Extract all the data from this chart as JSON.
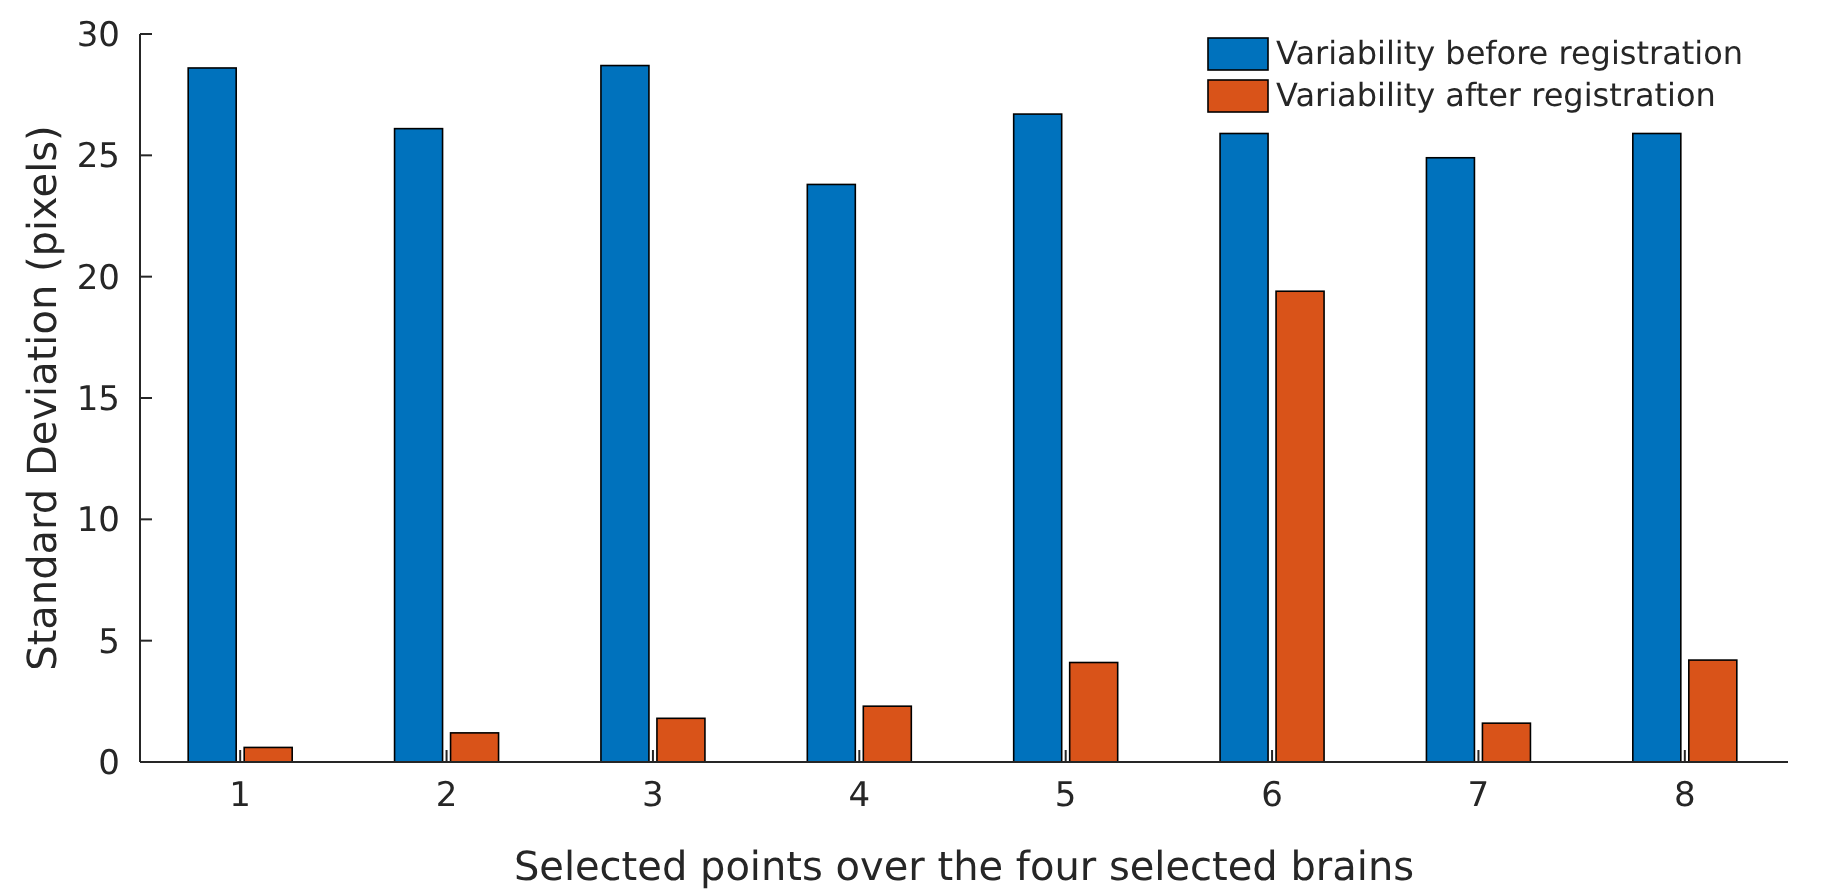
{
  "chart_data": {
    "type": "bar",
    "xlabel": "Selected points over the four selected brains",
    "ylabel": "Standard Deviation (pixels)",
    "categories": [
      "1",
      "2",
      "3",
      "4",
      "5",
      "6",
      "7",
      "8"
    ],
    "series": [
      {
        "name": "Variability before registration",
        "color": "#0072bd",
        "values": [
          28.6,
          26.1,
          28.7,
          23.8,
          26.7,
          25.9,
          24.9,
          25.9
        ]
      },
      {
        "name": "Variability after registration",
        "color": "#d95319",
        "values": [
          0.6,
          1.2,
          1.8,
          2.3,
          4.1,
          19.4,
          1.6,
          4.2
        ]
      }
    ],
    "ylim": [
      0,
      30
    ],
    "yticks": [
      0,
      5,
      10,
      15,
      20,
      25,
      30
    ],
    "grid": false,
    "legend": "top right"
  }
}
